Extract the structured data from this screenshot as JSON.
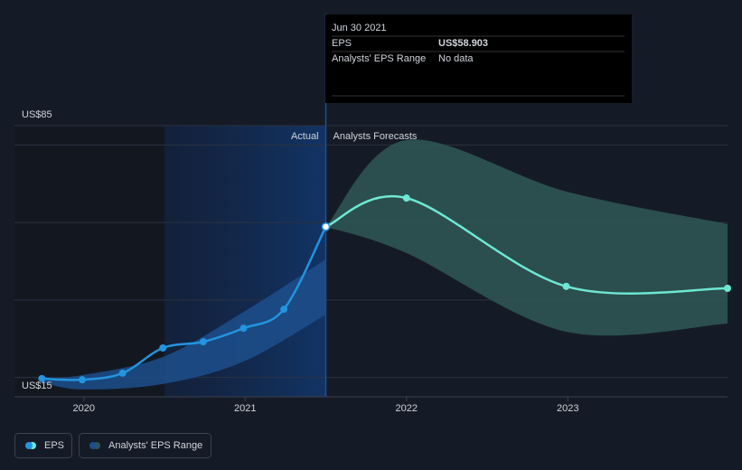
{
  "chart_data": {
    "type": "line",
    "xlim": [
      2019.57,
      2023.99
    ],
    "xticks": [
      2020,
      2021,
      2022,
      2023
    ],
    "ylim": [
      15,
      85
    ],
    "yticks": [
      {
        "value": 15,
        "label": "US$15"
      },
      {
        "value": 20,
        "label": null
      },
      {
        "value": 40,
        "label": null
      },
      {
        "value": 60,
        "label": null
      },
      {
        "value": 80,
        "label": null
      },
      {
        "value": 85,
        "label": "US$85"
      }
    ],
    "grid": true,
    "divider": 2021.5,
    "actual_label": "Actual",
    "forecast_label": "Analysts Forecasts",
    "series": [
      {
        "name": "EPS",
        "color": "#2394df",
        "forecast_color": "#6ee7d4",
        "x": [
          2019.74,
          2019.99,
          2020.24,
          2020.49,
          2020.74,
          2020.99,
          2021.24,
          2021.5,
          2022.0,
          2022.99,
          2023.99
        ],
        "values": [
          19.7,
          19.4,
          21.1,
          27.6,
          29.2,
          32.7,
          37.6,
          58.9,
          66.3,
          43.5,
          43.0
        ]
      }
    ],
    "range": {
      "name": "Analysts' EPS Range",
      "color": "#1d4f8c",
      "forecast_color": "#2e5553",
      "past": {
        "x": [
          2019.74,
          2019.99,
          2020.49,
          2020.99,
          2021.5
        ],
        "low": [
          18.7,
          16.9,
          18.3,
          24.1,
          36.2
        ],
        "high": [
          19.7,
          20.6,
          25.3,
          36.9,
          50.5
        ]
      },
      "forecast": {
        "x": [
          2021.5,
          2022.0,
          2022.99,
          2023.99
        ],
        "low": [
          58.9,
          52.1,
          31.8,
          33.9
        ],
        "high": [
          58.9,
          81.3,
          68.0,
          59.6
        ]
      }
    },
    "tooltip": {
      "date": "Jun 30 2021",
      "rows": [
        {
          "label": "EPS",
          "value": "US$58.903"
        },
        {
          "label": "Analysts' EPS Range",
          "value": "No data"
        }
      ]
    }
  }
}
